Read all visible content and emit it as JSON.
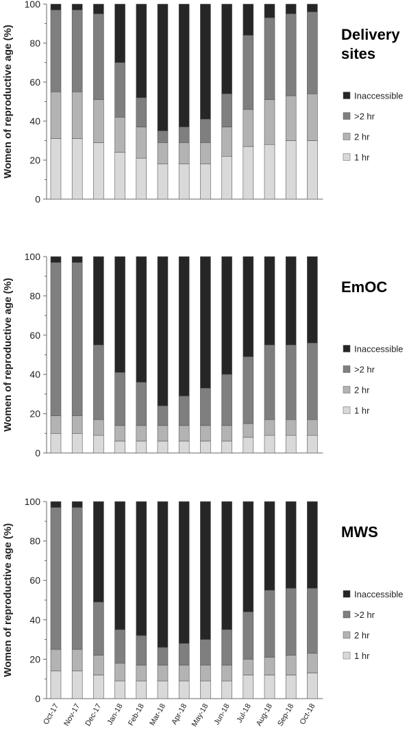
{
  "chart_data": [
    {
      "type": "bar",
      "stacked": true,
      "title_lines": [
        "Delivery",
        "sites"
      ],
      "ylabel": "Women of reproductive age (%)",
      "ylim": [
        0,
        100
      ],
      "yticks": [
        0,
        20,
        40,
        60,
        80,
        100
      ],
      "categories": [
        "Oct-17",
        "Nov-17",
        "Dec-17",
        "Jan-18",
        "Feb-18",
        "Mar-18",
        "Apr-18",
        "May-18",
        "Jun-18",
        "Jul-18",
        "Aug-18",
        "Sep-18",
        "Oct-18"
      ],
      "legend": [
        "Inaccessible",
        ">2 hr",
        "2 hr",
        "1 hr"
      ],
      "series": [
        {
          "name": "1 hr",
          "color": "#d9d9d9",
          "values": [
            31,
            31,
            29,
            24,
            21,
            18,
            18,
            18,
            22,
            27,
            28,
            30,
            30
          ]
        },
        {
          "name": "2 hr",
          "color": "#b3b3b3",
          "values": [
            24,
            24,
            22,
            18,
            16,
            11,
            11,
            11,
            15,
            19,
            23,
            23,
            24
          ]
        },
        {
          "name": ">2 hr",
          "color": "#7f7f7f",
          "values": [
            42,
            42,
            44,
            28,
            15,
            6,
            8,
            12,
            17,
            38,
            42,
            42,
            42
          ]
        },
        {
          "name": "Inaccessible",
          "color": "#262626",
          "values": [
            3,
            3,
            5,
            30,
            48,
            65,
            63,
            59,
            46,
            16,
            7,
            5,
            4
          ]
        }
      ]
    },
    {
      "type": "bar",
      "stacked": true,
      "title_lines": [
        "EmOC"
      ],
      "ylabel": "Women of reproductive age (%)",
      "ylim": [
        0,
        100
      ],
      "yticks": [
        0,
        20,
        40,
        60,
        80,
        100
      ],
      "categories": [
        "Oct-17",
        "Nov-17",
        "Dec-17",
        "Jan-18",
        "Feb-18",
        "Mar-18",
        "Apr-18",
        "May-18",
        "Jun-18",
        "Jul-18",
        "Aug-18",
        "Sep-18",
        "Oct-18"
      ],
      "legend": [
        "Inaccessible",
        ">2 hr",
        "2 hr",
        "1 hr"
      ],
      "series": [
        {
          "name": "1 hr",
          "color": "#d9d9d9",
          "values": [
            10,
            10,
            9,
            6,
            6,
            6,
            6,
            6,
            6,
            8,
            9,
            9,
            9
          ]
        },
        {
          "name": "2 hr",
          "color": "#b3b3b3",
          "values": [
            9,
            9,
            8,
            8,
            8,
            8,
            8,
            8,
            8,
            7,
            8,
            8,
            8
          ]
        },
        {
          "name": ">2 hr",
          "color": "#7f7f7f",
          "values": [
            78,
            78,
            38,
            27,
            22,
            10,
            15,
            19,
            26,
            34,
            38,
            38,
            39
          ]
        },
        {
          "name": "Inaccessible",
          "color": "#262626",
          "values": [
            3,
            3,
            45,
            59,
            64,
            76,
            71,
            67,
            60,
            51,
            45,
            45,
            44
          ]
        }
      ]
    },
    {
      "type": "bar",
      "stacked": true,
      "title_lines": [
        "MWS"
      ],
      "ylabel": "Women of reproductive age (%)",
      "ylim": [
        0,
        100
      ],
      "yticks": [
        0,
        20,
        40,
        60,
        80,
        100
      ],
      "categories": [
        "Oct-17",
        "Nov-17",
        "Dec-17",
        "Jan-18",
        "Feb-18",
        "Mar-18",
        "Apr-18",
        "May-18",
        "Jun-18",
        "Jul-18",
        "Aug-18",
        "Sep-18",
        "Oct-18"
      ],
      "legend": [
        "Inaccessible",
        ">2 hr",
        "2 hr",
        "1 hr"
      ],
      "series": [
        {
          "name": "1 hr",
          "color": "#d9d9d9",
          "values": [
            14,
            14,
            12,
            9,
            9,
            9,
            9,
            9,
            9,
            12,
            12,
            12,
            13
          ]
        },
        {
          "name": "2 hr",
          "color": "#b3b3b3",
          "values": [
            11,
            11,
            10,
            9,
            8,
            8,
            8,
            8,
            8,
            8,
            9,
            10,
            10
          ]
        },
        {
          "name": ">2 hr",
          "color": "#7f7f7f",
          "values": [
            72,
            72,
            27,
            17,
            15,
            9,
            11,
            13,
            18,
            24,
            34,
            34,
            33
          ]
        },
        {
          "name": "Inaccessible",
          "color": "#262626",
          "values": [
            3,
            3,
            51,
            65,
            68,
            74,
            72,
            70,
            65,
            56,
            45,
            44,
            44
          ]
        }
      ]
    }
  ]
}
